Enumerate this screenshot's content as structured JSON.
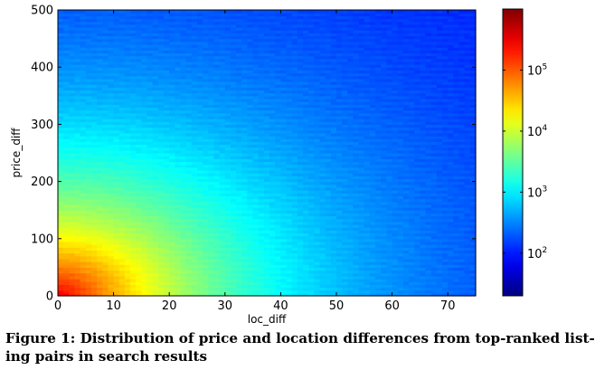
{
  "chart_data": {
    "type": "heatmap",
    "title": "",
    "xlabel": "loc_diff",
    "ylabel": "price_diff",
    "xlim": [
      0,
      75
    ],
    "ylim": [
      0,
      500
    ],
    "x_ticks": [
      0,
      10,
      20,
      30,
      40,
      50,
      60,
      70
    ],
    "y_ticks": [
      0,
      100,
      200,
      300,
      400,
      500
    ],
    "colorbar": {
      "scale": "log",
      "range": [
        20,
        1000000
      ],
      "tick_values": [
        100,
        1000,
        10000,
        100000
      ],
      "tick_labels": [
        "10^2",
        "10^3",
        "10^4",
        "10^5"
      ],
      "colormap": "jet"
    },
    "density_model": {
      "description": "approximate log10 count, highest at origin, decaying with loc_diff and price_diff",
      "log10_count_at_origin": 5.5,
      "log10_count_at_far_corner": 1.9,
      "grid": {
        "x_bins": 75,
        "y_bins": 100
      }
    },
    "grid": false,
    "legend": "none"
  },
  "caption": {
    "line1": "Figure 1: Distribution of price and location differences from top-ranked list-",
    "line2": "ing pairs in search results"
  }
}
